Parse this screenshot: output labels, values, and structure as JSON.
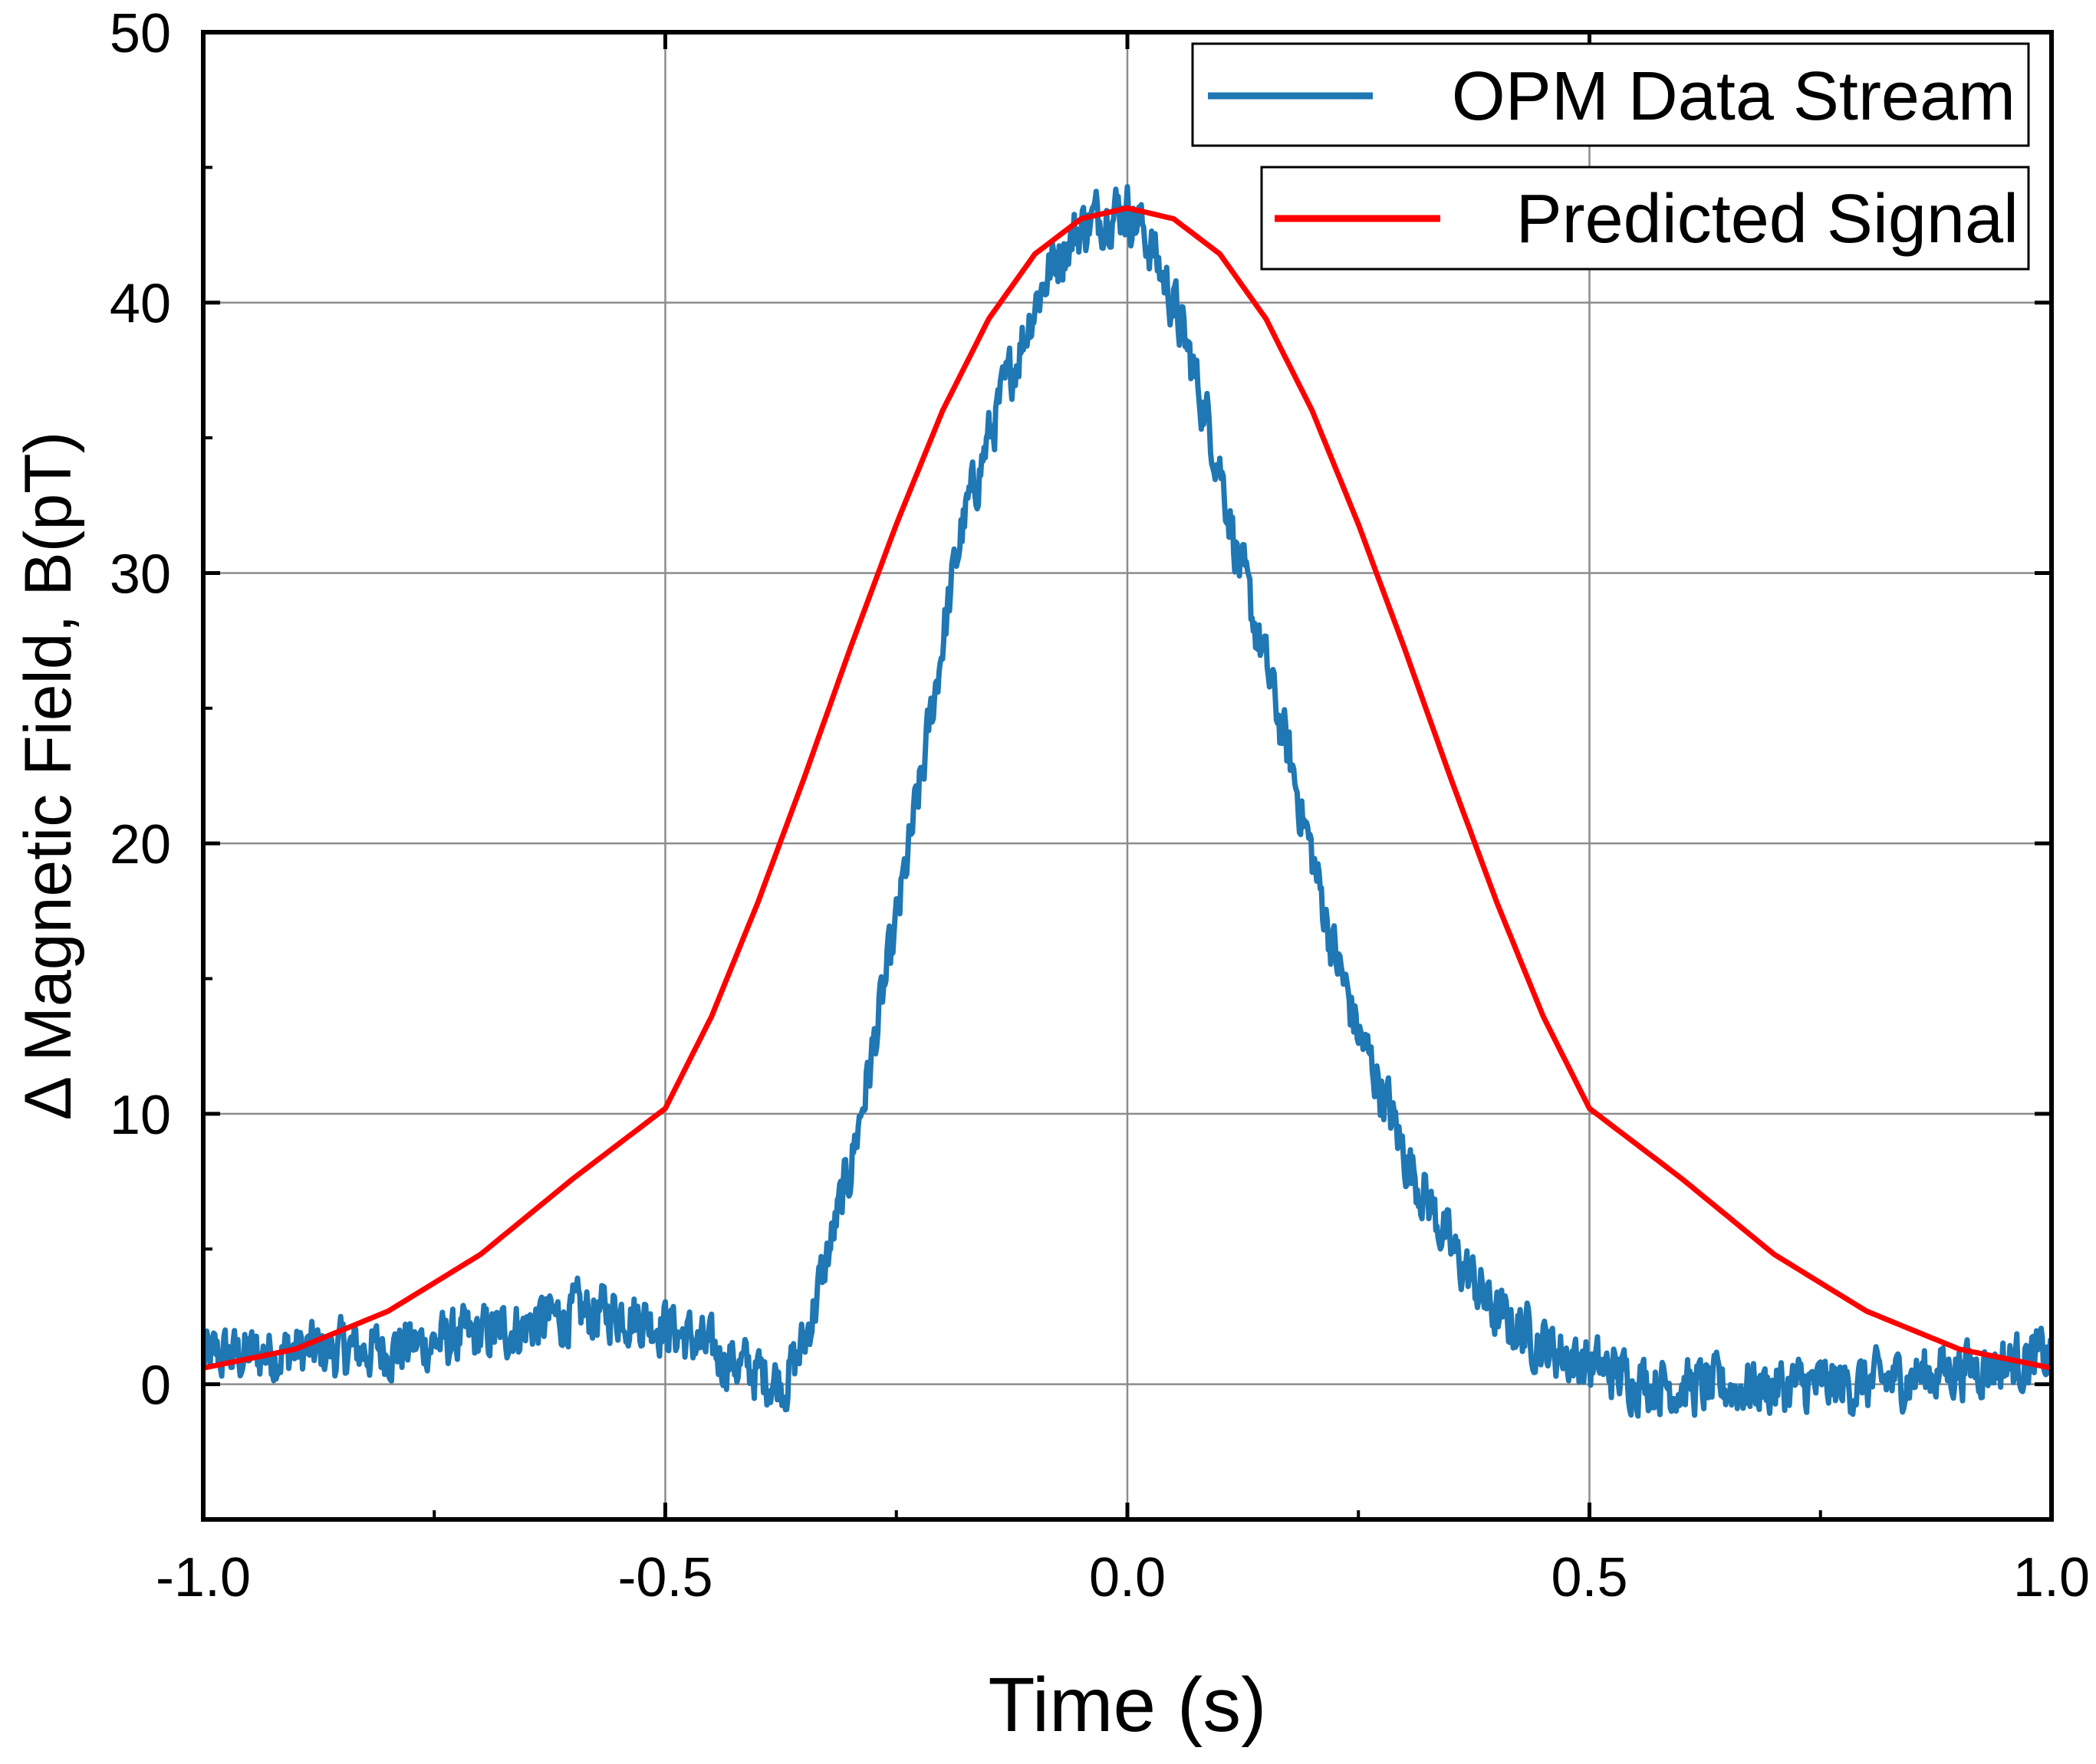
{
  "chart_data": {
    "type": "line",
    "title": "",
    "xlabel": "Time (s)",
    "ylabel": "Δ Magnetic Field, B(pT)",
    "xlim": [
      -1.0,
      1.0
    ],
    "ylim": [
      -5,
      50
    ],
    "grid": true,
    "legend_position": "top-right",
    "x_ticks": [
      -1.0,
      -0.5,
      0.0,
      0.5,
      1.0
    ],
    "x_tick_labels": [
      "-1.0",
      "-0.5",
      "0.0",
      "0.5",
      "1.0"
    ],
    "y_ticks": [
      0,
      10,
      20,
      30,
      40,
      50
    ],
    "y_tick_labels": [
      "0",
      "10",
      "20",
      "30",
      "40",
      "50"
    ],
    "series": [
      {
        "name": "OPM Data Stream",
        "color": "#1f77b4",
        "noisy": true,
        "x": [
          -1.0,
          -0.9,
          -0.8,
          -0.7,
          -0.6,
          -0.55,
          -0.5,
          -0.45,
          -0.4,
          -0.37,
          -0.35,
          -0.33,
          -0.3,
          -0.28,
          -0.25,
          -0.22,
          -0.2,
          -0.18,
          -0.15,
          -0.12,
          -0.1,
          -0.08,
          -0.05,
          -0.02,
          0.0,
          0.02,
          0.05,
          0.08,
          0.1,
          0.12,
          0.15,
          0.18,
          0.2,
          0.22,
          0.25,
          0.28,
          0.3,
          0.33,
          0.35,
          0.38,
          0.4,
          0.43,
          0.45,
          0.48,
          0.5,
          0.55,
          0.6,
          0.7,
          0.8,
          0.9,
          1.0
        ],
        "y": [
          1.0,
          1.2,
          1.3,
          1.8,
          2.6,
          2.7,
          2.2,
          1.2,
          0.4,
          0.1,
          1.5,
          4.0,
          8.0,
          11.5,
          17.0,
          23.0,
          27.5,
          31.5,
          35.0,
          38.0,
          40.0,
          41.5,
          42.8,
          43.4,
          43.5,
          42.5,
          40.0,
          36.5,
          34.0,
          30.5,
          26.5,
          22.5,
          19.5,
          16.5,
          13.0,
          10.5,
          8.5,
          6.5,
          5.0,
          3.5,
          2.5,
          2.0,
          1.5,
          1.0,
          0.7,
          0.2,
          -0.1,
          -0.1,
          0.0,
          0.6,
          1.0
        ]
      },
      {
        "name": "Predicted Signal",
        "color": "#ff0000",
        "noisy": false,
        "x": [
          -1.0,
          -0.9,
          -0.8,
          -0.7,
          -0.6,
          -0.5,
          -0.45,
          -0.4,
          -0.35,
          -0.3,
          -0.25,
          -0.2,
          -0.15,
          -0.1,
          -0.05,
          0.0,
          0.05,
          0.1,
          0.15,
          0.2,
          0.25,
          0.3,
          0.35,
          0.4,
          0.45,
          0.5,
          0.6,
          0.7,
          0.8,
          0.9,
          1.0
        ],
        "y": [
          0.6,
          1.3,
          2.7,
          4.8,
          7.6,
          10.2,
          13.6,
          17.8,
          22.4,
          27.2,
          31.8,
          36.0,
          39.4,
          41.8,
          43.1,
          43.5,
          43.1,
          41.8,
          39.4,
          36.0,
          31.8,
          27.2,
          22.4,
          17.8,
          13.6,
          10.2,
          7.6,
          4.8,
          2.7,
          1.3,
          0.6
        ]
      }
    ]
  }
}
